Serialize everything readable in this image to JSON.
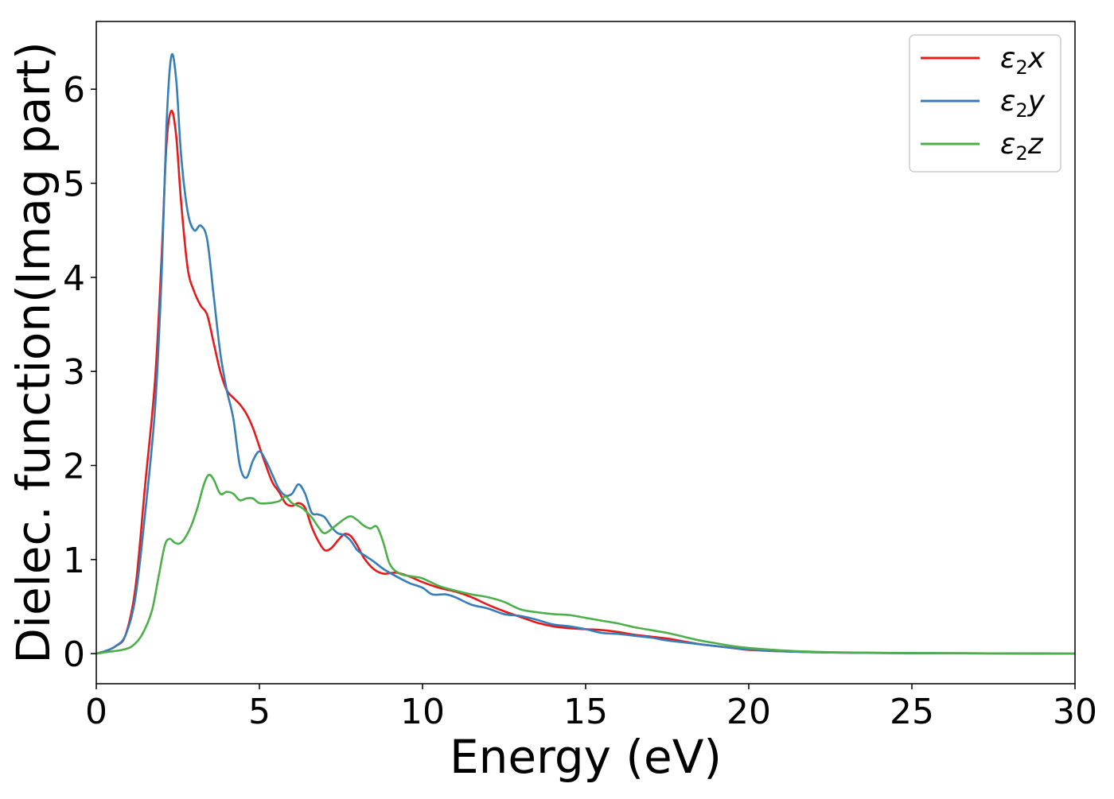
{
  "chart_data": {
    "type": "line",
    "xlabel": "Energy (eV)",
    "ylabel": "Dielec. function(Imag part)",
    "xlim": [
      0,
      30
    ],
    "ylim": [
      -0.32,
      6.72
    ],
    "xticks": [
      0,
      5,
      10,
      15,
      20,
      25,
      30
    ],
    "xtick_labels": [
      "0",
      "5",
      "10",
      "15",
      "20",
      "25",
      "30"
    ],
    "yticks": [
      0,
      1,
      2,
      3,
      4,
      5,
      6
    ],
    "ytick_labels": [
      "0",
      "1",
      "2",
      "3",
      "4",
      "5",
      "6"
    ],
    "grid": false,
    "legend_position": "top-right",
    "series": [
      {
        "name": "ε₂x",
        "legend_main": "ε",
        "legend_sub": "2",
        "legend_var": "x",
        "color": "#e41a1c",
        "points": [
          [
            0,
            0
          ],
          [
            0.3,
            0.03
          ],
          [
            0.6,
            0.08
          ],
          [
            0.9,
            0.2
          ],
          [
            1.2,
            0.7
          ],
          [
            1.5,
            1.8
          ],
          [
            1.8,
            2.9
          ],
          [
            2.0,
            4.2
          ],
          [
            2.15,
            5.4
          ],
          [
            2.3,
            5.77
          ],
          [
            2.45,
            5.5
          ],
          [
            2.6,
            4.8
          ],
          [
            2.8,
            4.1
          ],
          [
            3.0,
            3.85
          ],
          [
            3.2,
            3.7
          ],
          [
            3.4,
            3.6
          ],
          [
            3.6,
            3.3
          ],
          [
            3.8,
            3.0
          ],
          [
            4.0,
            2.8
          ],
          [
            4.2,
            2.72
          ],
          [
            4.4,
            2.65
          ],
          [
            4.6,
            2.55
          ],
          [
            4.8,
            2.4
          ],
          [
            5.0,
            2.2
          ],
          [
            5.2,
            2.0
          ],
          [
            5.4,
            1.82
          ],
          [
            5.6,
            1.72
          ],
          [
            5.8,
            1.6
          ],
          [
            6.0,
            1.57
          ],
          [
            6.2,
            1.6
          ],
          [
            6.4,
            1.55
          ],
          [
            6.6,
            1.35
          ],
          [
            6.8,
            1.2
          ],
          [
            7.0,
            1.1
          ],
          [
            7.2,
            1.12
          ],
          [
            7.4,
            1.2
          ],
          [
            7.6,
            1.27
          ],
          [
            7.8,
            1.25
          ],
          [
            8.0,
            1.15
          ],
          [
            8.2,
            1.02
          ],
          [
            8.5,
            0.9
          ],
          [
            8.8,
            0.85
          ],
          [
            9.2,
            0.86
          ],
          [
            9.6,
            0.82
          ],
          [
            10.0,
            0.76
          ],
          [
            10.5,
            0.7
          ],
          [
            11.0,
            0.66
          ],
          [
            11.5,
            0.6
          ],
          [
            12.0,
            0.52
          ],
          [
            12.5,
            0.45
          ],
          [
            13.0,
            0.39
          ],
          [
            13.5,
            0.33
          ],
          [
            14.0,
            0.29
          ],
          [
            14.5,
            0.27
          ],
          [
            15.0,
            0.26
          ],
          [
            15.5,
            0.25
          ],
          [
            16.0,
            0.23
          ],
          [
            16.5,
            0.2
          ],
          [
            17.0,
            0.18
          ],
          [
            17.5,
            0.16
          ],
          [
            18.0,
            0.13
          ],
          [
            18.5,
            0.1
          ],
          [
            19.0,
            0.08
          ],
          [
            19.5,
            0.06
          ],
          [
            20.0,
            0.04
          ],
          [
            21.0,
            0.025
          ],
          [
            22.0,
            0.015
          ],
          [
            23.0,
            0.01
          ],
          [
            25.0,
            0.005
          ],
          [
            30.0,
            0.0
          ]
        ]
      },
      {
        "name": "ε₂y",
        "legend_main": "ε",
        "legend_sub": "2",
        "legend_var": "y",
        "color": "#377eb8",
        "points": [
          [
            0,
            0
          ],
          [
            0.3,
            0.03
          ],
          [
            0.6,
            0.08
          ],
          [
            0.9,
            0.2
          ],
          [
            1.2,
            0.6
          ],
          [
            1.5,
            1.5
          ],
          [
            1.8,
            2.6
          ],
          [
            2.0,
            4.0
          ],
          [
            2.15,
            5.6
          ],
          [
            2.3,
            6.35
          ],
          [
            2.45,
            6.1
          ],
          [
            2.6,
            5.3
          ],
          [
            2.8,
            4.7
          ],
          [
            3.0,
            4.5
          ],
          [
            3.2,
            4.55
          ],
          [
            3.4,
            4.4
          ],
          [
            3.6,
            3.8
          ],
          [
            3.8,
            3.2
          ],
          [
            4.0,
            2.8
          ],
          [
            4.2,
            2.5
          ],
          [
            4.4,
            2.0
          ],
          [
            4.6,
            1.87
          ],
          [
            4.8,
            2.05
          ],
          [
            5.0,
            2.15
          ],
          [
            5.2,
            2.05
          ],
          [
            5.4,
            1.9
          ],
          [
            5.6,
            1.75
          ],
          [
            5.8,
            1.68
          ],
          [
            6.0,
            1.7
          ],
          [
            6.2,
            1.8
          ],
          [
            6.4,
            1.7
          ],
          [
            6.6,
            1.5
          ],
          [
            6.8,
            1.48
          ],
          [
            7.0,
            1.45
          ],
          [
            7.2,
            1.35
          ],
          [
            7.4,
            1.28
          ],
          [
            7.6,
            1.26
          ],
          [
            7.8,
            1.2
          ],
          [
            8.0,
            1.1
          ],
          [
            8.2,
            1.05
          ],
          [
            8.5,
            0.98
          ],
          [
            8.8,
            0.9
          ],
          [
            9.2,
            0.82
          ],
          [
            9.6,
            0.75
          ],
          [
            10.0,
            0.7
          ],
          [
            10.3,
            0.63
          ],
          [
            10.7,
            0.63
          ],
          [
            11.0,
            0.6
          ],
          [
            11.5,
            0.52
          ],
          [
            12.0,
            0.48
          ],
          [
            12.5,
            0.42
          ],
          [
            13.0,
            0.4
          ],
          [
            13.5,
            0.36
          ],
          [
            14.0,
            0.31
          ],
          [
            14.5,
            0.29
          ],
          [
            15.0,
            0.26
          ],
          [
            15.5,
            0.22
          ],
          [
            16.0,
            0.21
          ],
          [
            16.5,
            0.19
          ],
          [
            17.0,
            0.17
          ],
          [
            17.5,
            0.14
          ],
          [
            18.0,
            0.12
          ],
          [
            18.5,
            0.1
          ],
          [
            19.0,
            0.08
          ],
          [
            19.5,
            0.06
          ],
          [
            20.0,
            0.045
          ],
          [
            21.0,
            0.025
          ],
          [
            22.0,
            0.015
          ],
          [
            23.0,
            0.01
          ],
          [
            25.0,
            0.005
          ],
          [
            30.0,
            0.0
          ]
        ]
      },
      {
        "name": "ε₂z",
        "legend_main": "ε",
        "legend_sub": "2",
        "legend_var": "z",
        "color": "#4daf4a",
        "points": [
          [
            0,
            0
          ],
          [
            0.4,
            0.02
          ],
          [
            0.8,
            0.04
          ],
          [
            1.1,
            0.08
          ],
          [
            1.4,
            0.2
          ],
          [
            1.7,
            0.45
          ],
          [
            1.9,
            0.8
          ],
          [
            2.1,
            1.15
          ],
          [
            2.25,
            1.22
          ],
          [
            2.4,
            1.18
          ],
          [
            2.55,
            1.17
          ],
          [
            2.7,
            1.22
          ],
          [
            2.9,
            1.35
          ],
          [
            3.1,
            1.55
          ],
          [
            3.3,
            1.8
          ],
          [
            3.45,
            1.9
          ],
          [
            3.6,
            1.85
          ],
          [
            3.8,
            1.7
          ],
          [
            4.0,
            1.72
          ],
          [
            4.2,
            1.7
          ],
          [
            4.4,
            1.63
          ],
          [
            4.6,
            1.65
          ],
          [
            4.8,
            1.65
          ],
          [
            5.0,
            1.6
          ],
          [
            5.3,
            1.6
          ],
          [
            5.6,
            1.62
          ],
          [
            5.8,
            1.67
          ],
          [
            6.0,
            1.6
          ],
          [
            6.3,
            1.55
          ],
          [
            6.6,
            1.45
          ],
          [
            6.8,
            1.35
          ],
          [
            7.0,
            1.28
          ],
          [
            7.3,
            1.35
          ],
          [
            7.6,
            1.43
          ],
          [
            7.8,
            1.46
          ],
          [
            8.0,
            1.42
          ],
          [
            8.2,
            1.36
          ],
          [
            8.4,
            1.33
          ],
          [
            8.6,
            1.35
          ],
          [
            8.8,
            1.18
          ],
          [
            9.0,
            0.95
          ],
          [
            9.3,
            0.85
          ],
          [
            9.7,
            0.82
          ],
          [
            10.0,
            0.8
          ],
          [
            10.5,
            0.72
          ],
          [
            11.0,
            0.67
          ],
          [
            11.5,
            0.63
          ],
          [
            12.0,
            0.6
          ],
          [
            12.5,
            0.55
          ],
          [
            13.0,
            0.47
          ],
          [
            13.5,
            0.44
          ],
          [
            14.0,
            0.42
          ],
          [
            14.5,
            0.41
          ],
          [
            15.0,
            0.38
          ],
          [
            15.5,
            0.35
          ],
          [
            16.0,
            0.32
          ],
          [
            16.5,
            0.28
          ],
          [
            17.0,
            0.25
          ],
          [
            17.5,
            0.22
          ],
          [
            18.0,
            0.18
          ],
          [
            18.5,
            0.14
          ],
          [
            19.0,
            0.11
          ],
          [
            19.5,
            0.08
          ],
          [
            20.0,
            0.06
          ],
          [
            21.0,
            0.035
          ],
          [
            22.0,
            0.02
          ],
          [
            23.0,
            0.012
          ],
          [
            25.0,
            0.006
          ],
          [
            30.0,
            0.0
          ]
        ]
      }
    ]
  }
}
